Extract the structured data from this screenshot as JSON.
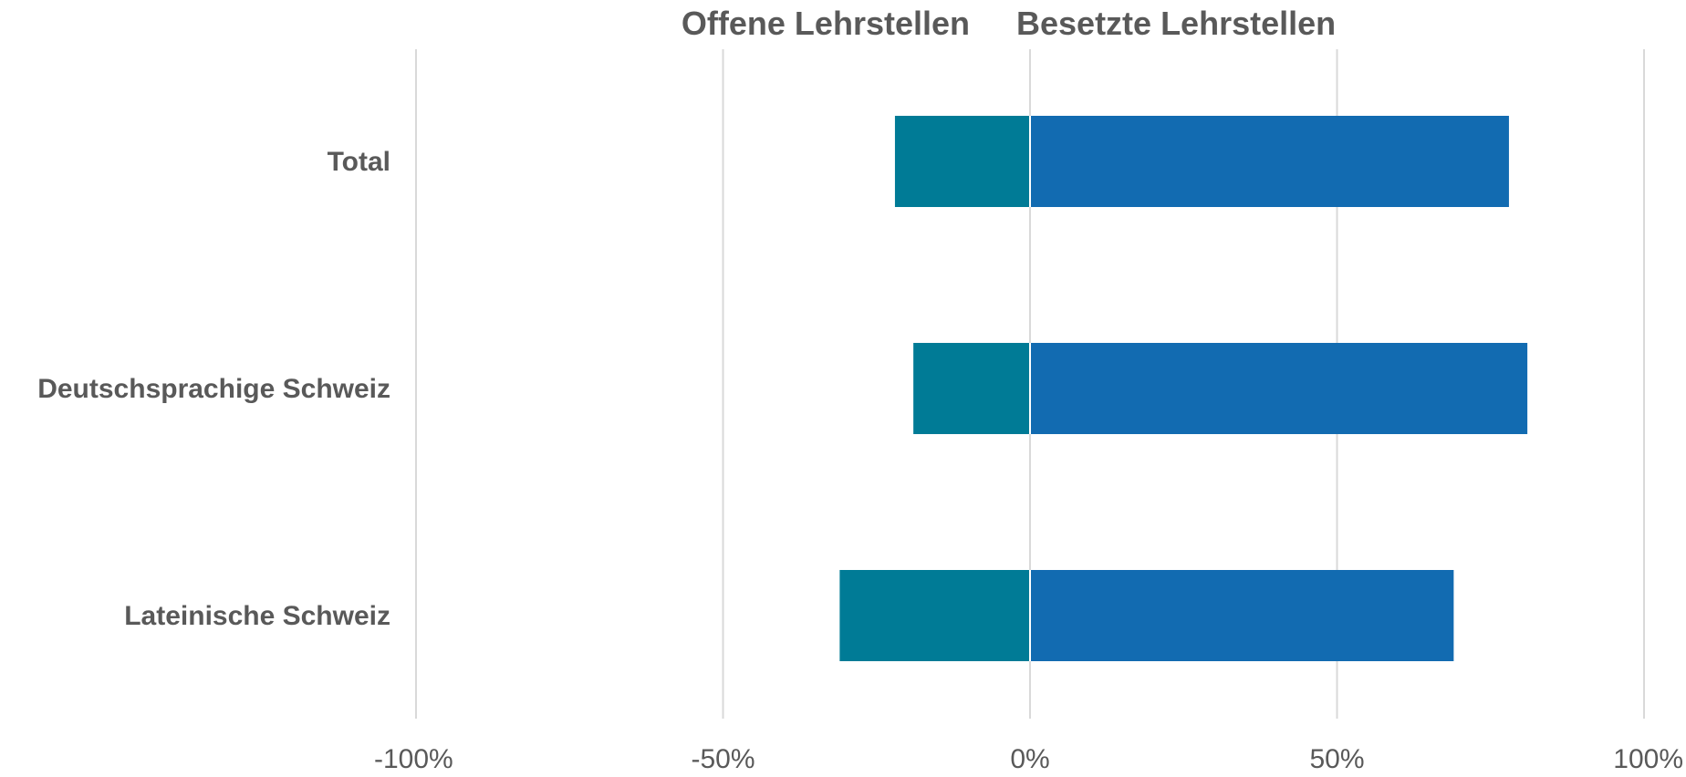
{
  "chart_data": {
    "type": "bar",
    "orientation": "horizontal",
    "stacked": "diverging",
    "categories": [
      "Total",
      "Deutschsprachige Schweiz",
      "Lateinische Schweiz"
    ],
    "series": [
      {
        "name": "Offene Lehrstellen",
        "values": [
          -22,
          -19,
          -31
        ],
        "color": "#007b96"
      },
      {
        "name": "Besetzte Lehrstellen",
        "values": [
          78,
          81,
          69
        ],
        "color": "#126bb1"
      }
    ],
    "xlim": [
      -100,
      100
    ],
    "xticks": [
      -100,
      -50,
      0,
      50,
      100
    ],
    "xtick_labels": [
      "-100%",
      "-50%",
      "0%",
      "50%",
      "100%"
    ],
    "grid": "vertical",
    "legend_position": "top"
  }
}
